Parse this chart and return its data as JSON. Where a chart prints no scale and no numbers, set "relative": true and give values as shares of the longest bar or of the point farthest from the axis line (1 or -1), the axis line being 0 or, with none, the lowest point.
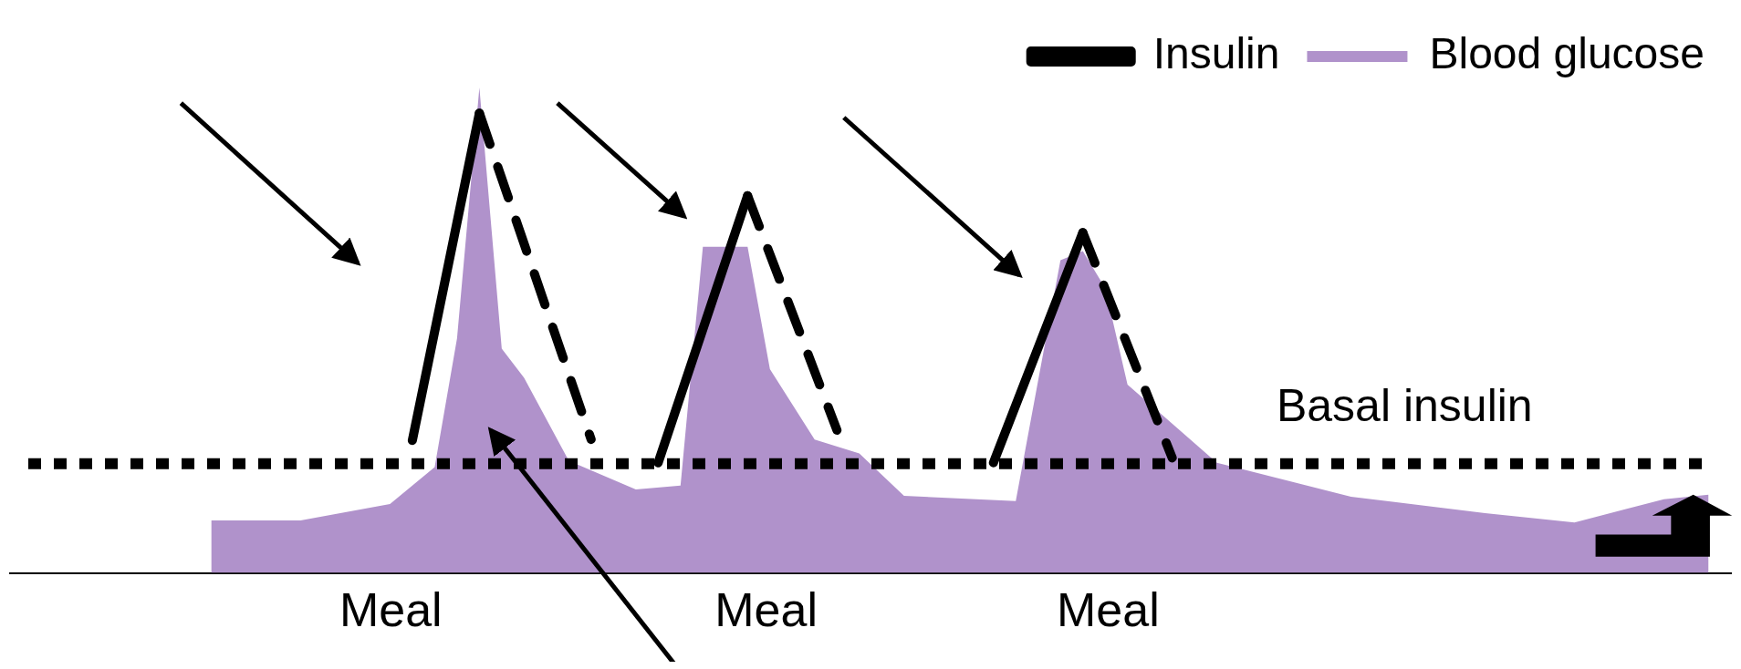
{
  "chart_data": {
    "type": "line",
    "relative": true,
    "categories": [
      null,
      null,
      null,
      null,
      null,
      null,
      null,
      null,
      null,
      null,
      null,
      null,
      null,
      null,
      null,
      null,
      null,
      null,
      null,
      null,
      null,
      null,
      null,
      null,
      null,
      null,
      null,
      null,
      null,
      null,
      null,
      null,
      null,
      null,
      null,
      null,
      null,
      null,
      null,
      null,
      null,
      null,
      null,
      null,
      null,
      null,
      null,
      null,
      null,
      null,
      null,
      null,
      null,
      null,
      null,
      null,
      null,
      null,
      null,
      null,
      null,
      null,
      null,
      null,
      null,
      null,
      null,
      null,
      null,
      null,
      null,
      null,
      null,
      null,
      null,
      null,
      null,
      null
    ],
    "series": [
      {
        "name": "Blood glucose",
        "type": "area",
        "color": "#b092cb",
        "values": [
          null,
          null,
          null,
          null,
          null,
          null,
          null,
          null,
          null,
          0.108,
          null,
          null,
          null,
          0.108,
          null,
          null,
          null,
          0.142,
          null,
          0.218,
          0.483,
          1.0,
          0.462,
          0.402,
          null,
          0.231,
          null,
          null,
          0.172,
          null,
          0.18,
          0.672,
          null,
          0.672,
          0.42,
          null,
          0.275,
          null,
          0.246,
          null,
          0.159,
          null,
          null,
          null,
          null,
          0.148,
          null,
          0.644,
          0.663,
          0.587,
          0.388,
          null,
          null,
          null,
          0.227,
          null,
          null,
          null,
          null,
          null,
          0.157,
          null,
          null,
          null,
          null,
          null,
          0.123,
          null,
          null,
          null,
          0.104,
          null,
          null,
          null,
          0.152,
          null,
          0.161,
          null
        ]
      },
      {
        "name": "Insulin",
        "type": "line",
        "color": "#000000",
        "line_style": "solid",
        "values": [
          null,
          null,
          null,
          null,
          null,
          null,
          null,
          null,
          null,
          null,
          null,
          null,
          null,
          null,
          null,
          null,
          null,
          null,
          0.273,
          null,
          null,
          0.947,
          null,
          null,
          null,
          null,
          null,
          null,
          null,
          null,
          null,
          null,
          null,
          null,
          null,
          null,
          null,
          null,
          null,
          null,
          null,
          null,
          null,
          null,
          null,
          null,
          null,
          null,
          null,
          null,
          null,
          null,
          null,
          null,
          null,
          null,
          null,
          null,
          null,
          null,
          null,
          null,
          null,
          null,
          null,
          null,
          null,
          null,
          null,
          null,
          null,
          null,
          null,
          null,
          null,
          null,
          null,
          null
        ]
      },
      {
        "type": "line",
        "color": "#000000",
        "line_style": "solid",
        "values": [
          null,
          null,
          null,
          null,
          null,
          null,
          null,
          null,
          null,
          null,
          null,
          null,
          null,
          null,
          null,
          null,
          null,
          null,
          null,
          null,
          null,
          null,
          null,
          null,
          null,
          null,
          null,
          null,
          null,
          0.227,
          null,
          null,
          null,
          0.777,
          null,
          null,
          null,
          null,
          null,
          null,
          null,
          null,
          null,
          null,
          null,
          null,
          null,
          null,
          null,
          null,
          null,
          null,
          null,
          null,
          null,
          null,
          null,
          null,
          null,
          null,
          null,
          null,
          null,
          null,
          null,
          null,
          null,
          null,
          null,
          null,
          null,
          null,
          null,
          null,
          null,
          null,
          null,
          null
        ]
      },
      {
        "type": "line",
        "color": "#000000",
        "line_style": "solid",
        "values": [
          null,
          null,
          null,
          null,
          null,
          null,
          null,
          null,
          null,
          null,
          null,
          null,
          null,
          null,
          null,
          null,
          null,
          null,
          null,
          null,
          null,
          null,
          null,
          null,
          null,
          null,
          null,
          null,
          null,
          null,
          null,
          null,
          null,
          null,
          null,
          null,
          null,
          null,
          null,
          null,
          null,
          null,
          null,
          null,
          0.227,
          null,
          null,
          null,
          0.701,
          null,
          null,
          null,
          null,
          null,
          null,
          null,
          null,
          null,
          null,
          null,
          null,
          null,
          null,
          null,
          null,
          null,
          null,
          null,
          null,
          null,
          null,
          null,
          null,
          null,
          null,
          null,
          null,
          null
        ]
      },
      {
        "type": "line",
        "color": "#000000",
        "line_style": "dashed",
        "values": [
          null,
          null,
          null,
          null,
          null,
          null,
          null,
          null,
          null,
          null,
          null,
          null,
          null,
          null,
          null,
          null,
          null,
          null,
          null,
          null,
          null,
          0.947,
          null,
          null,
          null,
          null,
          0.275,
          null,
          null,
          null,
          null,
          null,
          null,
          null,
          null,
          null,
          null,
          null,
          null,
          null,
          null,
          null,
          null,
          null,
          null,
          null,
          null,
          null,
          null,
          null,
          null,
          null,
          null,
          null,
          null,
          null,
          null,
          null,
          null,
          null,
          null,
          null,
          null,
          null,
          null,
          null,
          null,
          null,
          null,
          null,
          null,
          null,
          null,
          null,
          null,
          null,
          null,
          null
        ]
      },
      {
        "type": "line",
        "color": "#000000",
        "line_style": "dashed",
        "values": [
          null,
          null,
          null,
          null,
          null,
          null,
          null,
          null,
          null,
          null,
          null,
          null,
          null,
          null,
          null,
          null,
          null,
          null,
          null,
          null,
          null,
          null,
          null,
          null,
          null,
          null,
          null,
          null,
          null,
          null,
          null,
          null,
          null,
          0.777,
          null,
          null,
          null,
          0.294,
          null,
          null,
          null,
          null,
          null,
          null,
          null,
          null,
          null,
          null,
          null,
          null,
          null,
          null,
          null,
          null,
          null,
          null,
          null,
          null,
          null,
          null,
          null,
          null,
          null,
          null,
          null,
          null,
          null,
          null,
          null,
          null,
          null,
          null,
          null,
          null,
          null,
          null,
          null,
          null
        ]
      },
      {
        "type": "line",
        "color": "#000000",
        "line_style": "dashed",
        "values": [
          null,
          null,
          null,
          null,
          null,
          null,
          null,
          null,
          null,
          null,
          null,
          null,
          null,
          null,
          null,
          null,
          null,
          null,
          null,
          null,
          null,
          null,
          null,
          null,
          null,
          null,
          null,
          null,
          null,
          null,
          null,
          null,
          null,
          null,
          null,
          null,
          null,
          null,
          null,
          null,
          null,
          null,
          null,
          null,
          null,
          null,
          null,
          null,
          0.701,
          null,
          null,
          null,
          0.237,
          null,
          null,
          null,
          null,
          null,
          null,
          null,
          null,
          null,
          null,
          null,
          null,
          null,
          null,
          null,
          null,
          null,
          null,
          null,
          null,
          null,
          null,
          null,
          null,
          null
        ]
      }
    ],
    "ref_lines": [
      {
        "axis": "y",
        "value": 0.225,
        "label": "Basal insulin",
        "line_style": "dotted",
        "color": "#000000"
      }
    ],
    "annotations": [
      "Meal",
      "Meal",
      "Meal"
    ],
    "legend": "top right",
    "grid": false,
    "marker": "none"
  }
}
